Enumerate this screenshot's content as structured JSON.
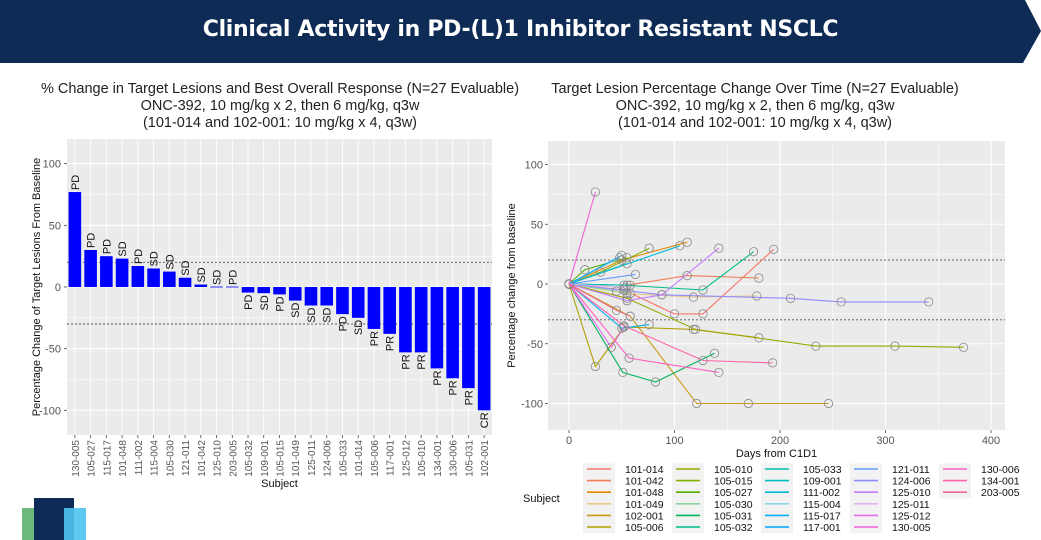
{
  "header": {
    "title": "Clinical Activity in PD-(L)1 Inhibitor Resistant NSCLC",
    "background_color": "#0d2b55"
  },
  "left_chart_title": [
    "% Change in Target Lesions and Best Overall Response (N=27 Evaluable)",
    "ONC-392, 10 mg/kg x 2, then 6 mg/kg, q3w",
    "(101-014 and 102-001: 10 mg/kg x 4, q3w)"
  ],
  "right_chart_title": [
    "Target Lesion Percentage Change Over Time (N=27 Evaluable)",
    "ONC-392, 10 mg/kg x 2, then 6 mg/kg, q3w",
    "(101-014 and 102-001: 10 mg/kg x 4, q3w)"
  ],
  "chart_data": [
    {
      "type": "bar",
      "title": "% Change in Target Lesions and Best Overall Response (N=27 Evaluable)",
      "xlabel": "Subject",
      "ylabel": "Percentage Change of Target Lesions From Baseline",
      "ylim": [
        -120,
        120
      ],
      "yticks": [
        100,
        50,
        0,
        -50,
        -100
      ],
      "reference_lines": [
        20,
        -30
      ],
      "bar_color": "#0000ff",
      "grid": true,
      "categories": [
        "130-005",
        "105-027",
        "115-017",
        "101-048",
        "111-002",
        "115-004",
        "105-030",
        "121-011",
        "101-042",
        "125-010",
        "203-005",
        "105-032",
        "109-001",
        "105-015",
        "101-049",
        "125-011",
        "124-006",
        "105-033",
        "101-014",
        "105-006",
        "117-001",
        "125-012",
        "105-010",
        "134-001",
        "130-006",
        "105-031",
        "102-001"
      ],
      "values": [
        77,
        30,
        25,
        23,
        17,
        15,
        12.5,
        7.5,
        2,
        0,
        0,
        -4.5,
        -5,
        -6,
        -11,
        -15,
        -15,
        -22,
        -25,
        -34,
        -38,
        -53,
        -53,
        -66,
        -74,
        -82,
        -100
      ],
      "labels": [
        "PD",
        "PD",
        "PD",
        "SD",
        "PD",
        "SD",
        "SD",
        "SD",
        "SD",
        "SD",
        "PD",
        "PD",
        "SD",
        "PD",
        "SD",
        "SD",
        "SD",
        "PD",
        "SD",
        "PR",
        "PR",
        "PR",
        "PR",
        "PR",
        "PR",
        "PR",
        "CR"
      ]
    },
    {
      "type": "line",
      "title": "Target Lesion Percentage Change Over Time (N=27 Evaluable)",
      "xlabel": "Days from C1D1",
      "ylabel": "Percentage change from baseline",
      "xlim": [
        -20,
        420
      ],
      "ylim": [
        -120,
        120
      ],
      "xticks": [
        0,
        100,
        200,
        300,
        400
      ],
      "yticks": [
        100,
        50,
        0,
        -50,
        -100
      ],
      "reference_lines": [
        20,
        -30
      ],
      "grid": true,
      "legend_title": "Subject",
      "legend_position": "bottom",
      "series": [
        {
          "name": "101-014",
          "color": "#f8766d",
          "points": [
            [
              0,
              0
            ],
            [
              52,
              -5
            ],
            [
              100,
              -25
            ],
            [
              127,
              -25
            ],
            [
              194,
              29
            ]
          ]
        },
        {
          "name": "101-042",
          "color": "#f07e55",
          "points": [
            [
              0,
              0
            ],
            [
              55,
              -1
            ],
            [
              112,
              7
            ],
            [
              180,
              5
            ]
          ]
        },
        {
          "name": "101-048",
          "color": "#e38900",
          "points": [
            [
              0,
              0
            ],
            [
              50,
              20
            ],
            [
              112,
              35
            ]
          ]
        },
        {
          "name": "101-049",
          "color": "#e8c98a",
          "points": [
            [
              0,
              0
            ],
            [
              55,
              -8
            ],
            [
              118,
              -11
            ],
            [
              178,
              -10
            ]
          ]
        },
        {
          "name": "102-001",
          "color": "#c99a1a",
          "points": [
            [
              0,
              0
            ],
            [
              58,
              -27
            ],
            [
              121,
              -100
            ],
            [
              170,
              -100
            ],
            [
              246,
              -100
            ]
          ]
        },
        {
          "name": "105-006",
          "color": "#b3a000",
          "points": [
            [
              0,
              0
            ],
            [
              25,
              -69
            ],
            [
              52,
              -36
            ],
            [
              118,
              -38
            ],
            [
              180,
              -45
            ]
          ]
        },
        {
          "name": "105-010",
          "color": "#9aa800",
          "points": [
            [
              0,
              0
            ],
            [
              55,
              -12
            ],
            [
              120,
              -38
            ],
            [
              234,
              -52
            ],
            [
              309,
              -52
            ],
            [
              374,
              -53
            ]
          ]
        },
        {
          "name": "105-015",
          "color": "#7fae00",
          "points": [
            [
              0,
              0
            ],
            [
              30,
              10
            ],
            [
              76,
              30
            ]
          ]
        },
        {
          "name": "105-027",
          "color": "#58b300",
          "points": [
            [
              0,
              0
            ],
            [
              15,
              12
            ],
            [
              55,
              22
            ]
          ]
        },
        {
          "name": "105-030",
          "color": "#8fd4a0",
          "points": [
            [
              0,
              0
            ],
            [
              45,
              -6
            ],
            [
              58,
              -8
            ]
          ]
        },
        {
          "name": "105-031",
          "color": "#00b65a",
          "points": [
            [
              0,
              0
            ],
            [
              51,
              -74
            ],
            [
              82,
              -82
            ],
            [
              138,
              -58
            ]
          ]
        },
        {
          "name": "105-032",
          "color": "#00bd8a",
          "points": [
            [
              0,
              0
            ],
            [
              52,
              -1
            ],
            [
              127,
              -5
            ],
            [
              175,
              27
            ]
          ]
        },
        {
          "name": "105-033",
          "color": "#00bfae",
          "points": [
            [
              0,
              0
            ],
            [
              55,
              17
            ]
          ]
        },
        {
          "name": "109-001",
          "color": "#00c0c4",
          "points": [
            [
              0,
              0
            ],
            [
              58,
              -1
            ]
          ]
        },
        {
          "name": "111-002",
          "color": "#00bbd6",
          "points": [
            [
              0,
              0
            ],
            [
              105,
              32
            ]
          ]
        },
        {
          "name": "115-004",
          "color": "#8fd6e8",
          "points": [
            [
              0,
              0
            ],
            [
              48,
              22
            ]
          ]
        },
        {
          "name": "115-017",
          "color": "#00b0f0",
          "points": [
            [
              0,
              0
            ],
            [
              50,
              -37
            ],
            [
              76,
              -34
            ]
          ]
        },
        {
          "name": "117-001",
          "color": "#00a5ff",
          "points": [
            [
              0,
              0
            ],
            [
              50,
              24
            ]
          ]
        },
        {
          "name": "121-011",
          "color": "#619cff",
          "points": [
            [
              0,
              0
            ],
            [
              63,
              8
            ]
          ]
        },
        {
          "name": "124-006",
          "color": "#8f8cff",
          "points": [
            [
              0,
              0
            ],
            [
              88,
              -9
            ],
            [
              210,
              -12
            ],
            [
              258,
              -15
            ],
            [
              341,
              -15
            ]
          ]
        },
        {
          "name": "125-010",
          "color": "#c77cff",
          "points": [
            [
              0,
              0
            ],
            [
              55,
              -14
            ],
            [
              88,
              -9
            ],
            [
              142,
              30
            ]
          ]
        },
        {
          "name": "125-011",
          "color": "#e5b3f0",
          "points": [
            [
              0,
              0
            ],
            [
              53,
              -3
            ]
          ]
        },
        {
          "name": "125-012",
          "color": "#e76bf3",
          "points": [
            [
              0,
              0
            ],
            [
              40,
              -53
            ],
            [
              52,
              -36
            ]
          ]
        },
        {
          "name": "130-005",
          "color": "#f062d6",
          "points": [
            [
              0,
              0
            ],
            [
              25,
              77
            ]
          ]
        },
        {
          "name": "130-006",
          "color": "#fd61c2",
          "points": [
            [
              0,
              0
            ],
            [
              57,
              -62
            ],
            [
              142,
              -74
            ]
          ]
        },
        {
          "name": "134-001",
          "color": "#ff63a8",
          "points": [
            [
              0,
              0
            ],
            [
              52,
              -35
            ],
            [
              127,
              -64
            ],
            [
              193,
              -66
            ]
          ]
        },
        {
          "name": "203-005",
          "color": "#f26890",
          "points": [
            [
              0,
              0
            ],
            [
              45,
              -22
            ],
            [
              58,
              -27
            ]
          ]
        }
      ]
    }
  ],
  "logo": {
    "colors": [
      "#6db87c",
      "#0d2b55",
      "#4fc3f0"
    ]
  }
}
